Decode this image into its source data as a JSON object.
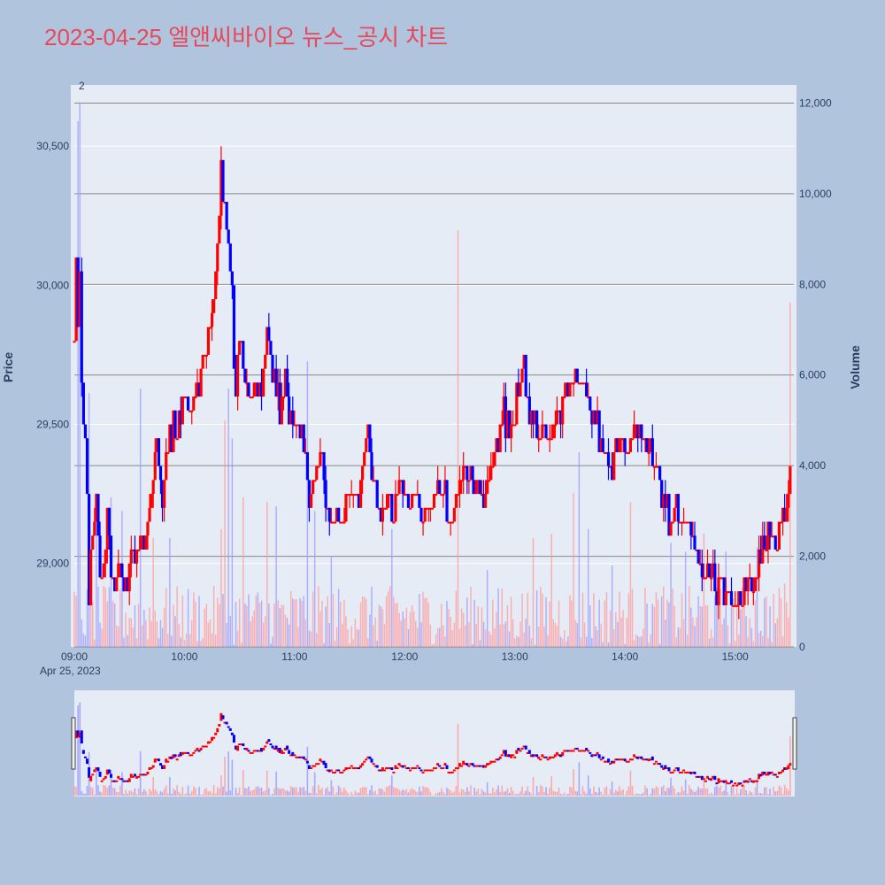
{
  "title": "2023-04-25 엘앤씨바이오 뉴스_공시 차트",
  "colors": {
    "background": "#b0c4de",
    "plot_bg": "#e5ecf6",
    "up": "#ff0000",
    "down": "#0000ff",
    "up_volume": "#ff9999",
    "down_volume": "#9999ff",
    "title": "#e8495a"
  },
  "annotation_label": "2",
  "date_label": "Apr 25, 2023",
  "chart_data": {
    "type": "candlestick-with-volume",
    "x_label": "",
    "y_label": "Price",
    "y2_label": "Volume",
    "x_ticks": [
      "09:00",
      "10:00",
      "11:00",
      "12:00",
      "13:00",
      "14:00",
      "15:00"
    ],
    "y_ticks": [
      29000,
      29500,
      30000,
      30500
    ],
    "y_tick_labels": [
      "29,000",
      "29,500",
      "30,000",
      "30,500"
    ],
    "y_range": [
      28700,
      30720
    ],
    "y2_ticks": [
      0,
      2000,
      4000,
      6000,
      8000,
      10000,
      12000
    ],
    "y2_tick_labels": [
      "0",
      "2,000",
      "4,000",
      "6,000",
      "8,000",
      "10,000",
      "12,000"
    ],
    "y2_range": [
      0,
      12400
    ],
    "x_range_minutes": [
      0,
      392
    ],
    "price_path": [
      [
        0,
        29800
      ],
      [
        1,
        30100
      ],
      [
        2,
        29900
      ],
      [
        3,
        30050
      ],
      [
        4,
        29700
      ],
      [
        5,
        29500
      ],
      [
        6,
        29400
      ],
      [
        7,
        29200
      ],
      [
        8,
        28850
      ],
      [
        9,
        29000
      ],
      [
        10,
        29100
      ],
      [
        11,
        29150
      ],
      [
        12,
        29250
      ],
      [
        13,
        29100
      ],
      [
        14,
        29000
      ],
      [
        15,
        28950
      ],
      [
        17,
        29050
      ],
      [
        18,
        29150
      ],
      [
        20,
        28950
      ],
      [
        22,
        28950
      ],
      [
        25,
        29000
      ],
      [
        27,
        28900
      ],
      [
        29,
        28950
      ],
      [
        31,
        29050
      ],
      [
        33,
        29000
      ],
      [
        35,
        29050
      ],
      [
        37,
        29100
      ],
      [
        39,
        29100
      ],
      [
        42,
        29250
      ],
      [
        45,
        29450
      ],
      [
        48,
        29200
      ],
      [
        50,
        29350
      ],
      [
        52,
        29450
      ],
      [
        55,
        29500
      ],
      [
        58,
        29550
      ],
      [
        60,
        29600
      ],
      [
        63,
        29550
      ],
      [
        66,
        29600
      ],
      [
        69,
        29700
      ],
      [
        72,
        29800
      ],
      [
        75,
        29900
      ],
      [
        77,
        30050
      ],
      [
        79,
        30250
      ],
      [
        80,
        30400
      ],
      [
        81,
        30300
      ],
      [
        83,
        30150
      ],
      [
        85,
        30100
      ],
      [
        86,
        30000
      ],
      [
        87,
        29700
      ],
      [
        88,
        29600
      ],
      [
        90,
        29850
      ],
      [
        92,
        29700
      ],
      [
        94,
        29600
      ],
      [
        96,
        29550
      ],
      [
        98,
        29650
      ],
      [
        100,
        29600
      ],
      [
        103,
        29700
      ],
      [
        105,
        29850
      ],
      [
        107,
        29700
      ],
      [
        110,
        29600
      ],
      [
        112,
        29550
      ],
      [
        115,
        29650
      ],
      [
        117,
        29550
      ],
      [
        120,
        29500
      ],
      [
        123,
        29450
      ],
      [
        126,
        29400
      ],
      [
        128,
        29200
      ],
      [
        130,
        29300
      ],
      [
        133,
        29350
      ],
      [
        135,
        29400
      ],
      [
        138,
        29200
      ],
      [
        141,
        29150
      ],
      [
        144,
        29200
      ],
      [
        147,
        29150
      ],
      [
        150,
        29250
      ],
      [
        153,
        29200
      ],
      [
        156,
        29300
      ],
      [
        160,
        29450
      ],
      [
        162,
        29350
      ],
      [
        165,
        29250
      ],
      [
        168,
        29150
      ],
      [
        171,
        29250
      ],
      [
        174,
        29200
      ],
      [
        177,
        29300
      ],
      [
        180,
        29250
      ],
      [
        183,
        29200
      ],
      [
        186,
        29250
      ],
      [
        189,
        29200
      ],
      [
        192,
        29250
      ],
      [
        195,
        29200
      ],
      [
        198,
        29300
      ],
      [
        201,
        29250
      ],
      [
        204,
        29200
      ],
      [
        207,
        29200
      ],
      [
        210,
        29300
      ],
      [
        213,
        29350
      ],
      [
        216,
        29300
      ],
      [
        219,
        29300
      ],
      [
        222,
        29250
      ],
      [
        225,
        29300
      ],
      [
        228,
        29350
      ],
      [
        231,
        29450
      ],
      [
        234,
        29550
      ],
      [
        237,
        29450
      ],
      [
        240,
        29550
      ],
      [
        243,
        29650
      ],
      [
        245,
        29700
      ],
      [
        247,
        29600
      ],
      [
        250,
        29500
      ],
      [
        253,
        29450
      ],
      [
        256,
        29500
      ],
      [
        259,
        29450
      ],
      [
        262,
        29500
      ],
      [
        265,
        29550
      ],
      [
        268,
        29600
      ],
      [
        271,
        29650
      ],
      [
        274,
        29700
      ],
      [
        277,
        29650
      ],
      [
        280,
        29600
      ],
      [
        283,
        29550
      ],
      [
        286,
        29450
      ],
      [
        289,
        29400
      ],
      [
        292,
        29350
      ],
      [
        295,
        29400
      ],
      [
        298,
        29450
      ],
      [
        301,
        29400
      ],
      [
        304,
        29450
      ],
      [
        307,
        29500
      ],
      [
        310,
        29450
      ],
      [
        313,
        29400
      ],
      [
        316,
        29350
      ],
      [
        319,
        29300
      ],
      [
        322,
        29200
      ],
      [
        325,
        29150
      ],
      [
        328,
        29200
      ],
      [
        331,
        29150
      ],
      [
        334,
        29150
      ],
      [
        337,
        29100
      ],
      [
        340,
        29000
      ],
      [
        343,
        28950
      ],
      [
        346,
        29000
      ],
      [
        349,
        28900
      ],
      [
        352,
        28950
      ],
      [
        355,
        28900
      ],
      [
        358,
        28850
      ],
      [
        361,
        28900
      ],
      [
        364,
        28850
      ],
      [
        367,
        28950
      ],
      [
        370,
        28900
      ],
      [
        373,
        29000
      ],
      [
        376,
        29050
      ],
      [
        379,
        29100
      ],
      [
        382,
        29050
      ],
      [
        385,
        29100
      ],
      [
        388,
        29200
      ],
      [
        390,
        29350
      ]
    ],
    "volume_spikes": [
      [
        2,
        11600,
        "down"
      ],
      [
        3,
        12000,
        "down"
      ],
      [
        8,
        5600,
        "down"
      ],
      [
        12,
        3400,
        "down"
      ],
      [
        20,
        3300,
        "down"
      ],
      [
        26,
        3000,
        "down"
      ],
      [
        36,
        5700,
        "down"
      ],
      [
        43,
        2400,
        "up"
      ],
      [
        52,
        2400,
        "down"
      ],
      [
        80,
        2600,
        "up"
      ],
      [
        82,
        5000,
        "up"
      ],
      [
        84,
        5700,
        "down"
      ],
      [
        86,
        4600,
        "down"
      ],
      [
        92,
        3300,
        "up"
      ],
      [
        105,
        3200,
        "up"
      ],
      [
        110,
        3100,
        "down"
      ],
      [
        127,
        6300,
        "down"
      ],
      [
        131,
        3000,
        "down"
      ],
      [
        140,
        2000,
        "down"
      ],
      [
        173,
        2600,
        "down"
      ],
      [
        209,
        9200,
        "up"
      ],
      [
        225,
        1700,
        "down"
      ],
      [
        250,
        2400,
        "up"
      ],
      [
        260,
        2500,
        "up"
      ],
      [
        272,
        3400,
        "up"
      ],
      [
        275,
        4300,
        "down"
      ],
      [
        280,
        2600,
        "down"
      ],
      [
        293,
        1800,
        "down"
      ],
      [
        303,
        3200,
        "up"
      ],
      [
        325,
        2300,
        "down"
      ],
      [
        333,
        2100,
        "down"
      ],
      [
        343,
        2500,
        "up"
      ],
      [
        355,
        2100,
        "down"
      ],
      [
        372,
        2200,
        "down"
      ],
      [
        387,
        1400,
        "up"
      ],
      [
        390,
        7600,
        "up"
      ],
      [
        391,
        5000,
        "up"
      ]
    ],
    "volume_base_max": 1300
  }
}
